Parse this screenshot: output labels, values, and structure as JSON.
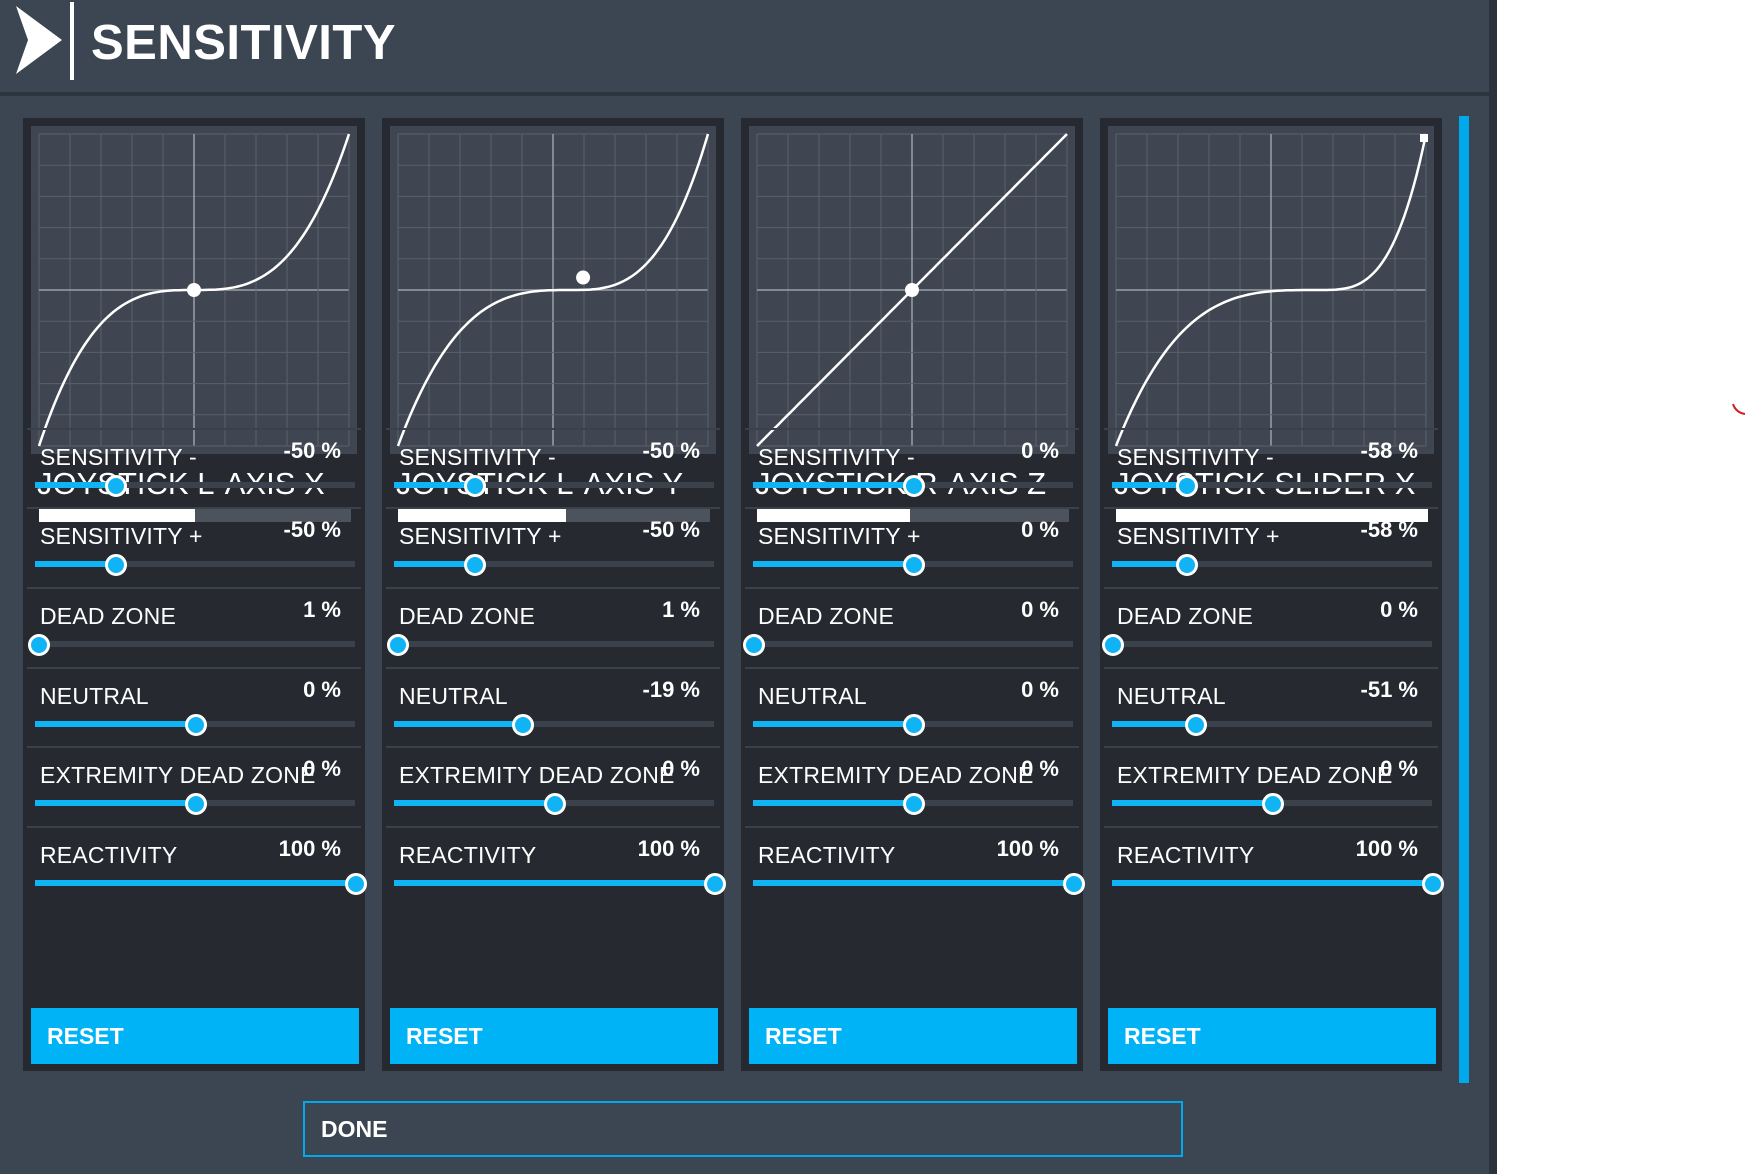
{
  "header": {
    "title": "SENSITIVITY",
    "icon": "chevron-right-icon"
  },
  "panels": [
    {
      "axis": "JOYSTICK L-AXIS X",
      "axis_bar_fraction": 0.5,
      "rows": [
        {
          "label": "SENSITIVITY -",
          "value": "-50 %",
          "position": 0.25,
          "fill_from_left": true
        },
        {
          "label": "SENSITIVITY +",
          "value": "-50 %",
          "position": 0.25,
          "fill_from_left": true
        },
        {
          "label": "DEAD ZONE",
          "value": "1 %",
          "position": 0.01,
          "fill_from_left": true
        },
        {
          "label": "NEUTRAL",
          "value": "0 %",
          "position": 0.5,
          "fill_from_left": true
        },
        {
          "label": "EXTREMITY DEAD ZONE",
          "value": "0 %",
          "position": 0.5,
          "fill_from_left": true
        },
        {
          "label": "REACTIVITY",
          "value": "100 %",
          "position": 1.0,
          "fill_from_left": true
        }
      ],
      "reset_label": "RESET",
      "curve": {
        "sensitivity": -50,
        "neutral": 0
      }
    },
    {
      "axis": "JOYSTICK L-AXIS Y",
      "axis_bar_fraction": 0.54,
      "rows": [
        {
          "label": "SENSITIVITY -",
          "value": "-50 %",
          "position": 0.25,
          "fill_from_left": true
        },
        {
          "label": "SENSITIVITY +",
          "value": "-50 %",
          "position": 0.25,
          "fill_from_left": true
        },
        {
          "label": "DEAD ZONE",
          "value": "1 %",
          "position": 0.01,
          "fill_from_left": true
        },
        {
          "label": "NEUTRAL",
          "value": "-19 %",
          "position": 0.4,
          "fill_from_left": true
        },
        {
          "label": "EXTREMITY DEAD ZONE",
          "value": "0 %",
          "position": 0.5,
          "fill_from_left": true
        },
        {
          "label": "REACTIVITY",
          "value": "100 %",
          "position": 1.0,
          "fill_from_left": true
        }
      ],
      "reset_label": "RESET",
      "curve": {
        "sensitivity": -50,
        "neutral": -19
      }
    },
    {
      "axis": "JOYSTICK R-AXIS Z",
      "axis_bar_fraction": 0.49,
      "rows": [
        {
          "label": "SENSITIVITY -",
          "value": "0 %",
          "position": 0.5,
          "fill_from_left": true
        },
        {
          "label": "SENSITIVITY +",
          "value": "0 %",
          "position": 0.5,
          "fill_from_left": true
        },
        {
          "label": "DEAD ZONE",
          "value": "0 %",
          "position": 0.0,
          "fill_from_left": true
        },
        {
          "label": "NEUTRAL",
          "value": "0 %",
          "position": 0.5,
          "fill_from_left": true
        },
        {
          "label": "EXTREMITY DEAD ZONE",
          "value": "0 %",
          "position": 0.5,
          "fill_from_left": true
        },
        {
          "label": "REACTIVITY",
          "value": "100 %",
          "position": 1.0,
          "fill_from_left": true
        }
      ],
      "reset_label": "RESET",
      "curve": {
        "sensitivity": 0,
        "neutral": 0
      }
    },
    {
      "axis": "JOYSTICK SLIDER X",
      "axis_bar_fraction": 1.0,
      "rows": [
        {
          "label": "SENSITIVITY -",
          "value": "-58 %",
          "position": 0.23,
          "fill_from_left": true
        },
        {
          "label": "SENSITIVITY +",
          "value": "-58 %",
          "position": 0.23,
          "fill_from_left": true
        },
        {
          "label": "DEAD ZONE",
          "value": "0 %",
          "position": 0.0,
          "fill_from_left": true
        },
        {
          "label": "NEUTRAL",
          "value": "-51 %",
          "position": 0.26,
          "fill_from_left": true
        },
        {
          "label": "EXTREMITY DEAD ZONE",
          "value": "0 %",
          "position": 0.5,
          "fill_from_left": true
        },
        {
          "label": "REACTIVITY",
          "value": "100 %",
          "position": 1.0,
          "fill_from_left": true
        }
      ],
      "reset_label": "RESET",
      "curve": {
        "sensitivity": -58,
        "neutral": -51
      }
    }
  ],
  "done_label": "DONE",
  "colors": {
    "accent": "#00b2f6",
    "panel": "#262a30",
    "background": "#3c4652"
  }
}
